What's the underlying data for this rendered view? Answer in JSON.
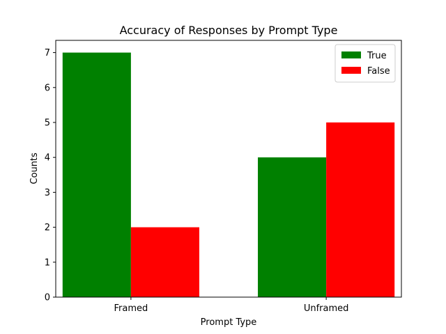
{
  "chart_data": {
    "type": "bar",
    "title": "Accuracy of Responses by Prompt Type",
    "xlabel": "Prompt Type",
    "ylabel": "Counts",
    "categories": [
      "Framed",
      "Unframed"
    ],
    "series": [
      {
        "name": "True",
        "values": [
          7,
          4
        ],
        "color": "#008000"
      },
      {
        "name": "False",
        "values": [
          2,
          5
        ],
        "color": "#ff0000"
      }
    ],
    "ylim": [
      0,
      7.35
    ],
    "yticks": [
      "0",
      "1",
      "2",
      "3",
      "4",
      "5",
      "6",
      "7"
    ],
    "grid": false,
    "legend_position": "top-right"
  }
}
